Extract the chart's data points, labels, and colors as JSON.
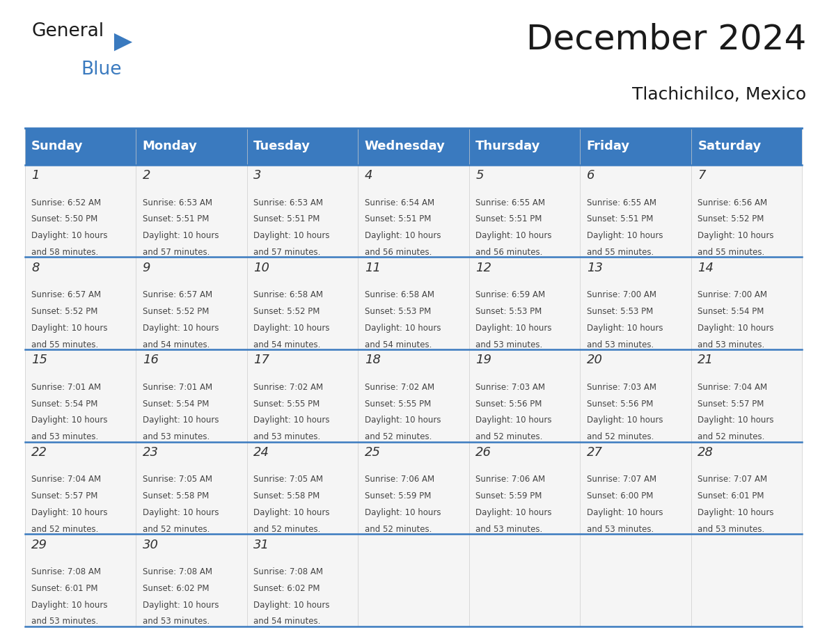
{
  "title": "December 2024",
  "subtitle": "Tlachichilco, Mexico",
  "header_color": "#3a7abf",
  "header_text_color": "#ffffff",
  "cell_bg_color": "#f5f5f5",
  "border_color": "#3a7abf",
  "day_names": [
    "Sunday",
    "Monday",
    "Tuesday",
    "Wednesday",
    "Thursday",
    "Friday",
    "Saturday"
  ],
  "weeks": [
    [
      {
        "day": 1,
        "sunrise": "6:52 AM",
        "sunset": "5:50 PM",
        "daylight": "10 hours and 58 minutes."
      },
      {
        "day": 2,
        "sunrise": "6:53 AM",
        "sunset": "5:51 PM",
        "daylight": "10 hours and 57 minutes."
      },
      {
        "day": 3,
        "sunrise": "6:53 AM",
        "sunset": "5:51 PM",
        "daylight": "10 hours and 57 minutes."
      },
      {
        "day": 4,
        "sunrise": "6:54 AM",
        "sunset": "5:51 PM",
        "daylight": "10 hours and 56 minutes."
      },
      {
        "day": 5,
        "sunrise": "6:55 AM",
        "sunset": "5:51 PM",
        "daylight": "10 hours and 56 minutes."
      },
      {
        "day": 6,
        "sunrise": "6:55 AM",
        "sunset": "5:51 PM",
        "daylight": "10 hours and 55 minutes."
      },
      {
        "day": 7,
        "sunrise": "6:56 AM",
        "sunset": "5:52 PM",
        "daylight": "10 hours and 55 minutes."
      }
    ],
    [
      {
        "day": 8,
        "sunrise": "6:57 AM",
        "sunset": "5:52 PM",
        "daylight": "10 hours and 55 minutes."
      },
      {
        "day": 9,
        "sunrise": "6:57 AM",
        "sunset": "5:52 PM",
        "daylight": "10 hours and 54 minutes."
      },
      {
        "day": 10,
        "sunrise": "6:58 AM",
        "sunset": "5:52 PM",
        "daylight": "10 hours and 54 minutes."
      },
      {
        "day": 11,
        "sunrise": "6:58 AM",
        "sunset": "5:53 PM",
        "daylight": "10 hours and 54 minutes."
      },
      {
        "day": 12,
        "sunrise": "6:59 AM",
        "sunset": "5:53 PM",
        "daylight": "10 hours and 53 minutes."
      },
      {
        "day": 13,
        "sunrise": "7:00 AM",
        "sunset": "5:53 PM",
        "daylight": "10 hours and 53 minutes."
      },
      {
        "day": 14,
        "sunrise": "7:00 AM",
        "sunset": "5:54 PM",
        "daylight": "10 hours and 53 minutes."
      }
    ],
    [
      {
        "day": 15,
        "sunrise": "7:01 AM",
        "sunset": "5:54 PM",
        "daylight": "10 hours and 53 minutes."
      },
      {
        "day": 16,
        "sunrise": "7:01 AM",
        "sunset": "5:54 PM",
        "daylight": "10 hours and 53 minutes."
      },
      {
        "day": 17,
        "sunrise": "7:02 AM",
        "sunset": "5:55 PM",
        "daylight": "10 hours and 53 minutes."
      },
      {
        "day": 18,
        "sunrise": "7:02 AM",
        "sunset": "5:55 PM",
        "daylight": "10 hours and 52 minutes."
      },
      {
        "day": 19,
        "sunrise": "7:03 AM",
        "sunset": "5:56 PM",
        "daylight": "10 hours and 52 minutes."
      },
      {
        "day": 20,
        "sunrise": "7:03 AM",
        "sunset": "5:56 PM",
        "daylight": "10 hours and 52 minutes."
      },
      {
        "day": 21,
        "sunrise": "7:04 AM",
        "sunset": "5:57 PM",
        "daylight": "10 hours and 52 minutes."
      }
    ],
    [
      {
        "day": 22,
        "sunrise": "7:04 AM",
        "sunset": "5:57 PM",
        "daylight": "10 hours and 52 minutes."
      },
      {
        "day": 23,
        "sunrise": "7:05 AM",
        "sunset": "5:58 PM",
        "daylight": "10 hours and 52 minutes."
      },
      {
        "day": 24,
        "sunrise": "7:05 AM",
        "sunset": "5:58 PM",
        "daylight": "10 hours and 52 minutes."
      },
      {
        "day": 25,
        "sunrise": "7:06 AM",
        "sunset": "5:59 PM",
        "daylight": "10 hours and 52 minutes."
      },
      {
        "day": 26,
        "sunrise": "7:06 AM",
        "sunset": "5:59 PM",
        "daylight": "10 hours and 53 minutes."
      },
      {
        "day": 27,
        "sunrise": "7:07 AM",
        "sunset": "6:00 PM",
        "daylight": "10 hours and 53 minutes."
      },
      {
        "day": 28,
        "sunrise": "7:07 AM",
        "sunset": "6:01 PM",
        "daylight": "10 hours and 53 minutes."
      }
    ],
    [
      {
        "day": 29,
        "sunrise": "7:08 AM",
        "sunset": "6:01 PM",
        "daylight": "10 hours and 53 minutes."
      },
      {
        "day": 30,
        "sunrise": "7:08 AM",
        "sunset": "6:02 PM",
        "daylight": "10 hours and 53 minutes."
      },
      {
        "day": 31,
        "sunrise": "7:08 AM",
        "sunset": "6:02 PM",
        "daylight": "10 hours and 54 minutes."
      },
      null,
      null,
      null,
      null
    ]
  ]
}
